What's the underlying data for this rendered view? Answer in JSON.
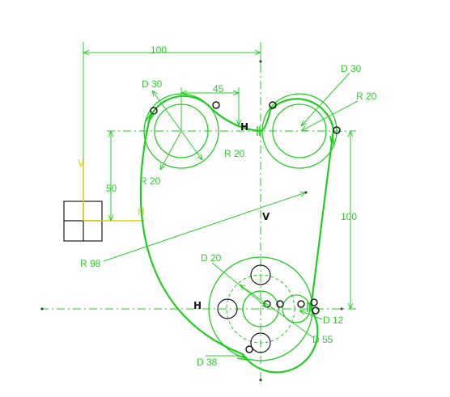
{
  "dimensions": {
    "d100_top": "100",
    "d45": "45",
    "d30_left": "D 30",
    "d30_right": "D 30",
    "r20_right": "R 20",
    "r20_mid": "R 20",
    "r20_left": "R 20",
    "d50": "50",
    "d100_right": "100",
    "r98": "R 98",
    "d20": "D 20",
    "d12": "D 12",
    "d55": "D 55",
    "d38": "D 38"
  },
  "axis_labels": {
    "h_top": "H",
    "v_center": "V",
    "h_bottom": "H",
    "h_axis": "H",
    "v_axis": "V"
  },
  "colors": {
    "geometry": "#22cc22",
    "axis": "#e0d000",
    "annotation": "#1a1a1a"
  }
}
